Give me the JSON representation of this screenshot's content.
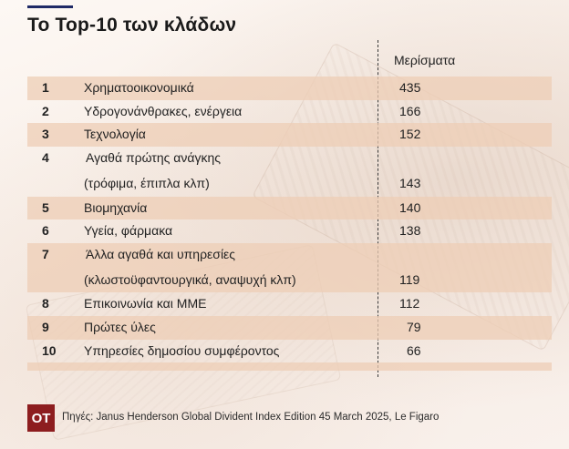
{
  "chart_data": {
    "type": "table",
    "title": "Το Top-10 των κλάδων",
    "column_header": "Μερίσματα",
    "rows": [
      {
        "rank": "1",
        "category": [
          "Χρηματοοικονομικά"
        ],
        "value": 435
      },
      {
        "rank": "2",
        "category": [
          "Υδρογονάνθρακες, ενέργεια"
        ],
        "value": 166
      },
      {
        "rank": "3",
        "category": [
          "Τεχνολογία"
        ],
        "value": 152
      },
      {
        "rank": "4",
        "category": [
          "Αγαθά πρώτης ανάγκης",
          "(τρόφιμα, έπιπλα κλπ)"
        ],
        "value": 143
      },
      {
        "rank": "5",
        "category": [
          "Βιομηχανία"
        ],
        "value": 140
      },
      {
        "rank": "6",
        "category": [
          "Υγεία, φάρμακα"
        ],
        "value": 138
      },
      {
        "rank": "7",
        "category": [
          "Άλλα αγαθά και υπηρεσίες",
          "(κλωστοϋφαντουργικά, αναψυχή κλπ)"
        ],
        "value": 119
      },
      {
        "rank": "8",
        "category": [
          "Επικοινωνία και ΜΜΕ"
        ],
        "value": 112
      },
      {
        "rank": "9",
        "category": [
          "Πρώτες ύλες"
        ],
        "value": 79
      },
      {
        "rank": "10",
        "category": [
          "Υπηρεσίες δημοσίου συμφέροντος"
        ],
        "value": 66
      }
    ]
  },
  "footer": {
    "logo_text": "ΟΤ",
    "source": "Πηγές: Janus Henderson Global Divident Index Edition 45 March 2025, Le Figaro"
  },
  "colors": {
    "accent_line": "#1f2a66",
    "row_shade": "#eecdb6",
    "logo_bg": "#8d1d1f"
  }
}
